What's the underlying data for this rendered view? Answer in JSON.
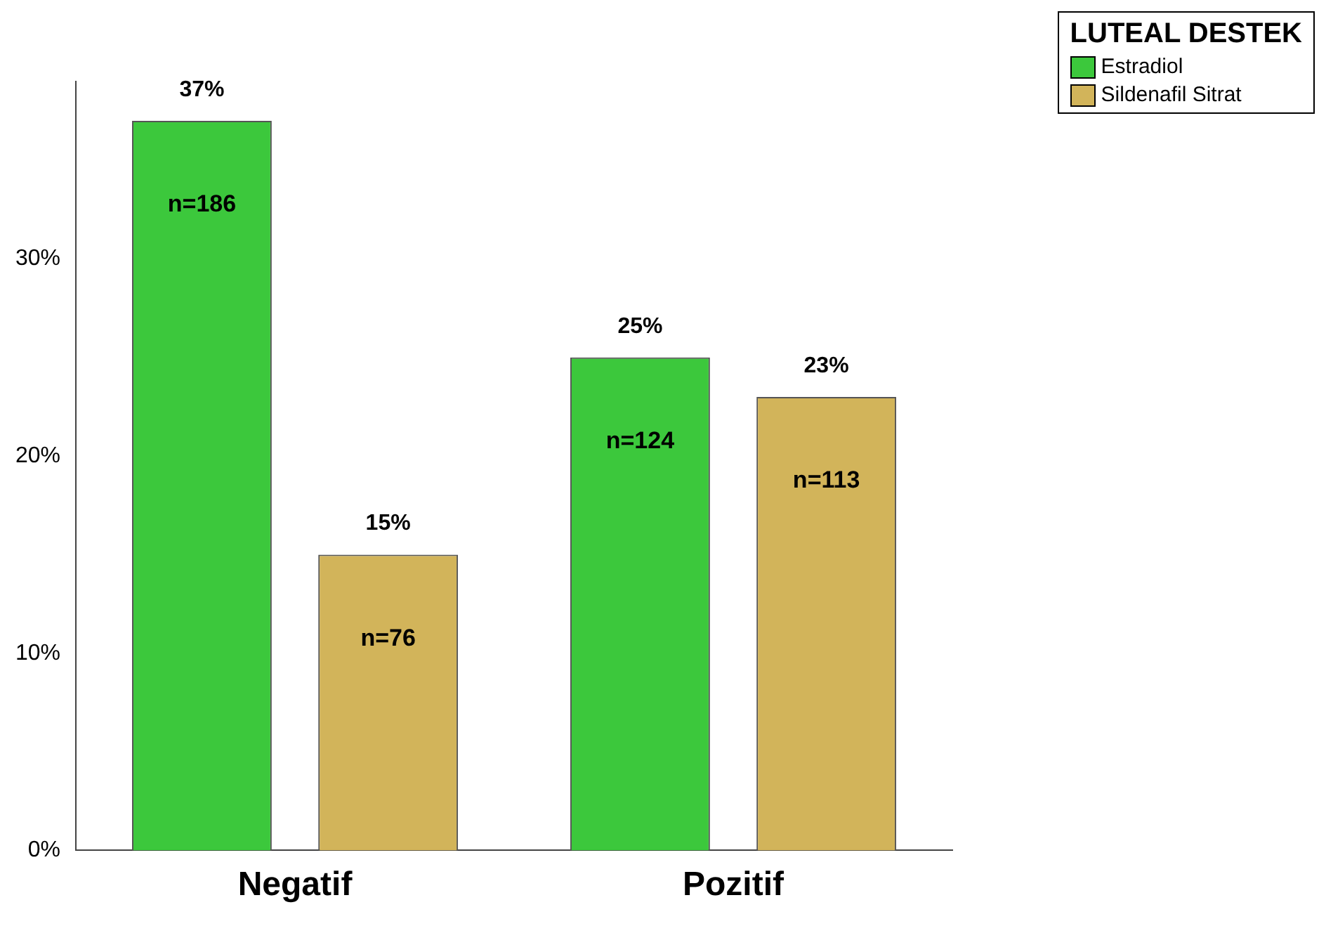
{
  "chart_data": {
    "type": "bar",
    "categories": [
      "Negatif",
      "Pozitif"
    ],
    "legend_title": "LUTEAL DESTEK",
    "legend": "top right",
    "grid": false,
    "ylim": [
      0,
      39
    ],
    "yticks": [
      {
        "value": 0,
        "label": "0%"
      },
      {
        "value": 10,
        "label": "10%"
      },
      {
        "value": 20,
        "label": "20%"
      },
      {
        "value": 30,
        "label": "30%"
      }
    ],
    "series": [
      {
        "name": "Estradiol",
        "color": "#3cc83c",
        "values": [
          37,
          25
        ],
        "value_labels": [
          "37%",
          "25%"
        ]
      },
      {
        "name": "Sildenafil Sitrat",
        "color": "#d2b45a",
        "values": [
          15,
          23
        ],
        "value_labels": [
          "15%",
          "23%"
        ]
      }
    ],
    "annotations": [
      "n=186",
      "n=76",
      "n=124",
      "n=113"
    ]
  }
}
